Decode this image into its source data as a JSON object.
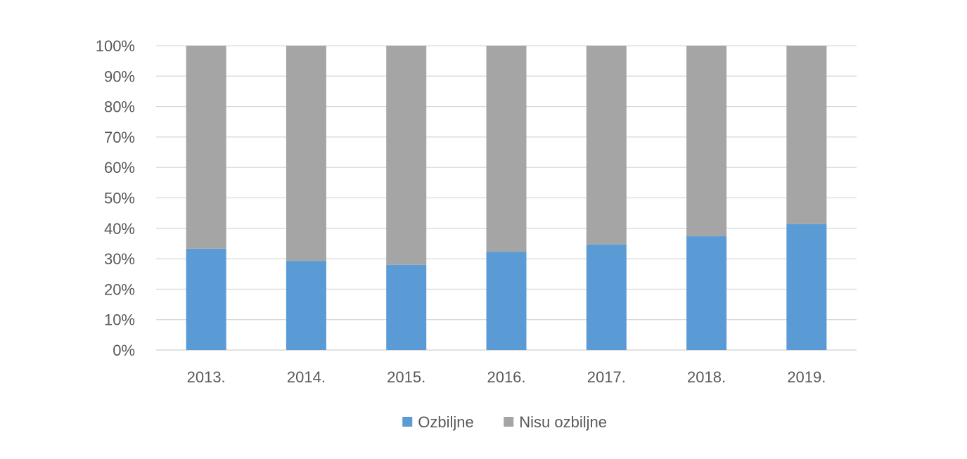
{
  "chart_data": {
    "type": "bar",
    "stacked": true,
    "percent_stacked": true,
    "title": "",
    "xlabel": "",
    "ylabel": "",
    "categories": [
      "2013.",
      "2014.",
      "2015.",
      "2016.",
      "2017.",
      "2018.",
      "2019."
    ],
    "ylim": [
      0,
      100
    ],
    "y_ticks": [
      "0%",
      "10%",
      "20%",
      "30%",
      "40%",
      "50%",
      "60%",
      "70%",
      "80%",
      "90%",
      "100%"
    ],
    "grid": true,
    "legend_position": "bottom",
    "series": [
      {
        "name": "Ozbiljne",
        "color": "#5B9BD5",
        "values": [
          33.3,
          29.3,
          28.0,
          32.3,
          34.7,
          37.4,
          41.4
        ]
      },
      {
        "name": "Nisu ozbiljne",
        "color": "#A5A5A5",
        "values": [
          66.7,
          70.7,
          72.0,
          67.7,
          65.3,
          62.6,
          58.6
        ]
      }
    ]
  }
}
